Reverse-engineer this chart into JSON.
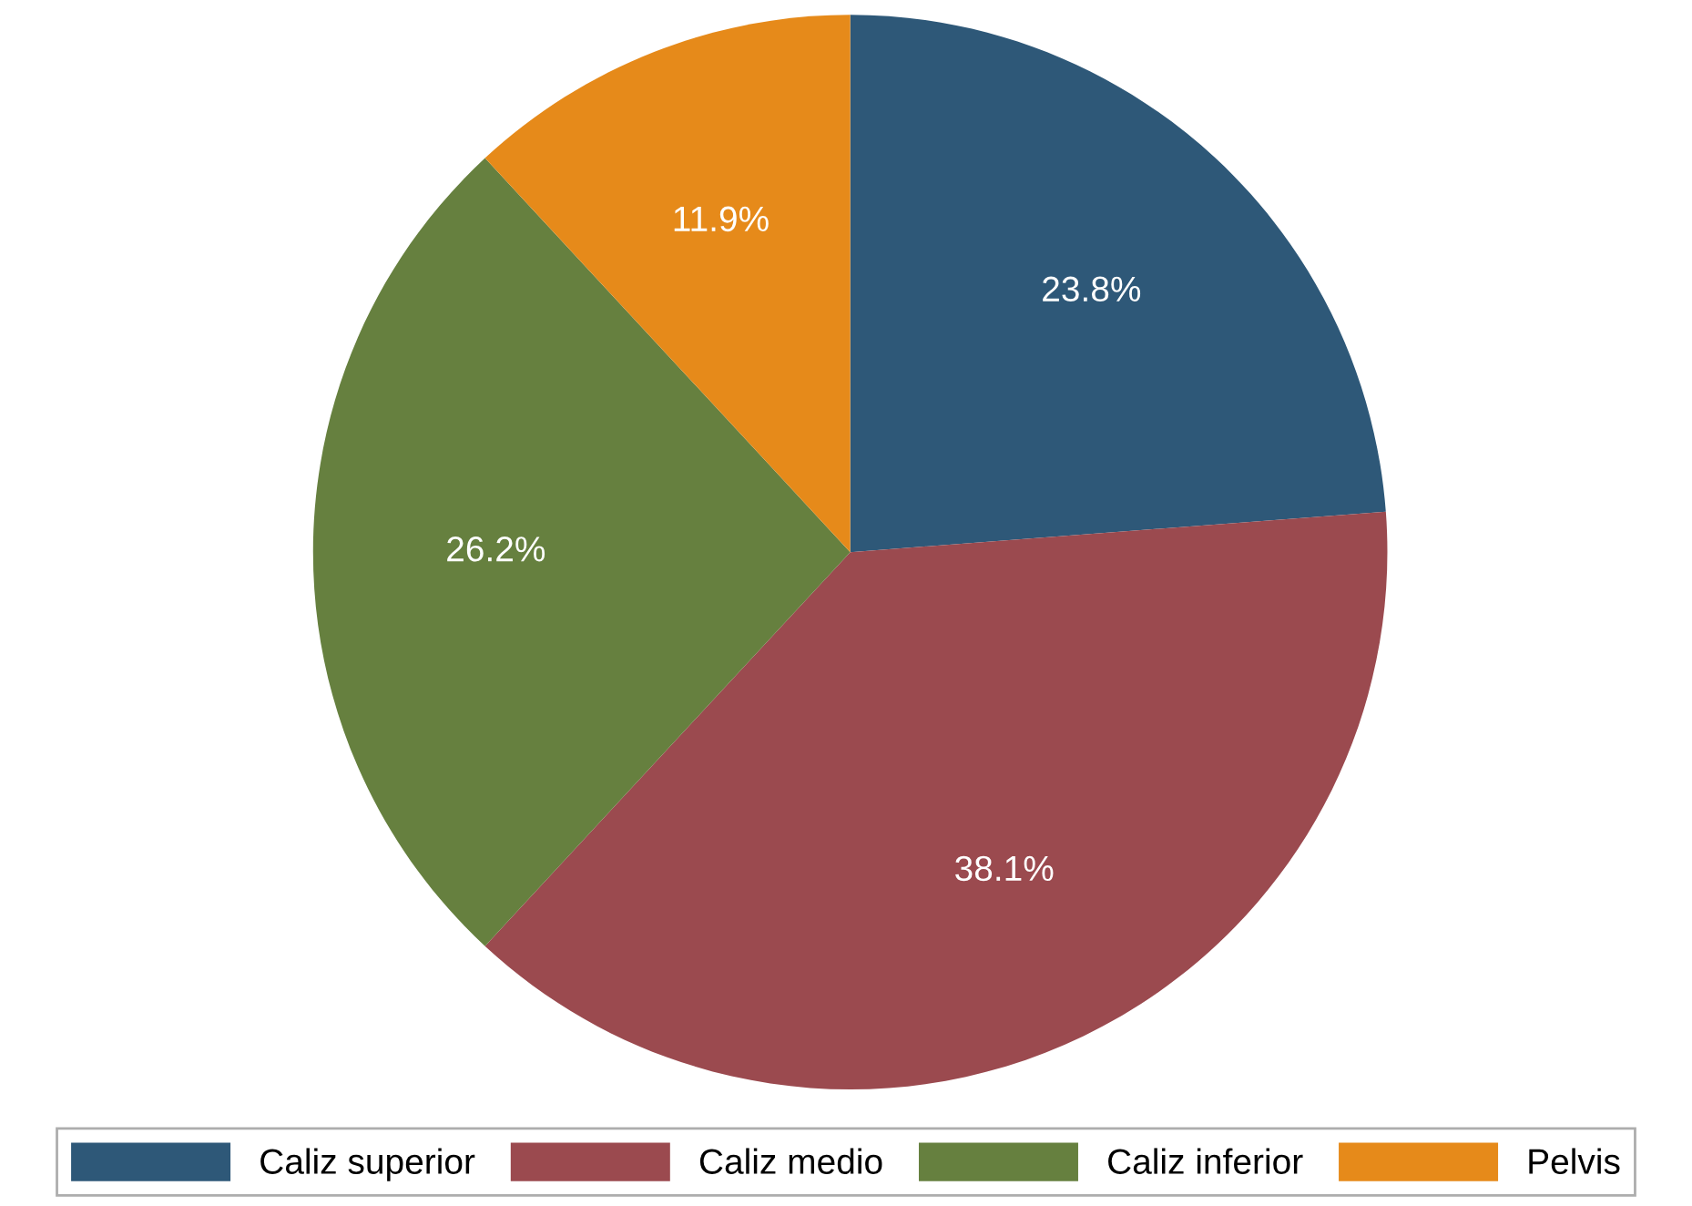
{
  "chart_data": {
    "type": "pie",
    "categories": [
      "Caliz superior",
      "Caliz medio",
      "Caliz inferior",
      "Pelvis"
    ],
    "values": [
      23.8,
      38.1,
      26.2,
      11.9
    ],
    "value_labels": [
      "23.8%",
      "38.1%",
      "26.2%",
      "11.9%"
    ],
    "colors": [
      "#2e5878",
      "#9b4a4f",
      "#66803f",
      "#e68a1a"
    ],
    "legend": "bottom"
  }
}
